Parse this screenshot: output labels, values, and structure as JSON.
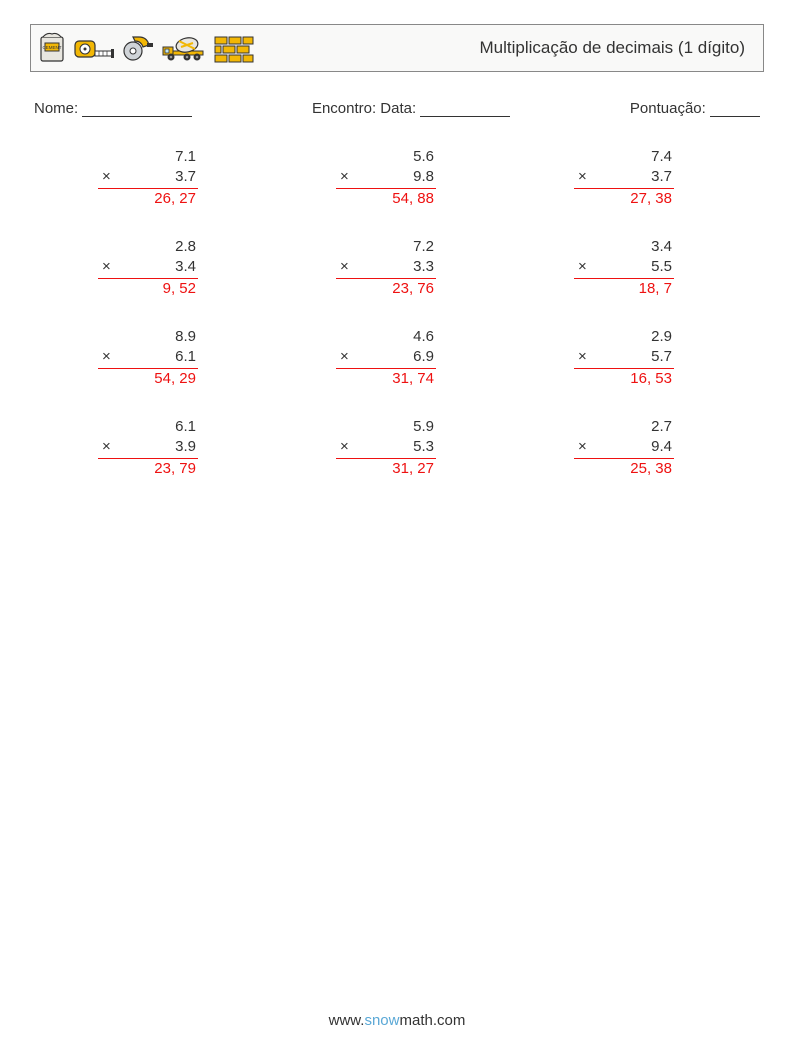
{
  "header": {
    "title": "Multiplicação de decimais (1 dígito)"
  },
  "info": {
    "name_label": "Nome:",
    "name_blank_width": 110,
    "date_label": "Encontro: Data:",
    "date_blank_width": 90,
    "score_label": "Pontuação:",
    "score_blank_width": 50
  },
  "problems": [
    {
      "a": "7.1",
      "b": "3.7",
      "ans": "26, 27"
    },
    {
      "a": "5.6",
      "b": "9.8",
      "ans": "54, 88"
    },
    {
      "a": "7.4",
      "b": "3.7",
      "ans": "27, 38"
    },
    {
      "a": "2.8",
      "b": "3.4",
      "ans": "9, 52"
    },
    {
      "a": "7.2",
      "b": "3.3",
      "ans": "23, 76"
    },
    {
      "a": "3.4",
      "b": "5.5",
      "ans": "18, 7"
    },
    {
      "a": "8.9",
      "b": "6.1",
      "ans": "54, 29"
    },
    {
      "a": "4.6",
      "b": "6.9",
      "ans": "31, 74"
    },
    {
      "a": "2.9",
      "b": "5.7",
      "ans": "16, 53"
    },
    {
      "a": "6.1",
      "b": "3.9",
      "ans": "23, 79"
    },
    {
      "a": "5.9",
      "b": "5.3",
      "ans": "31, 27"
    },
    {
      "a": "2.7",
      "b": "9.4",
      "ans": "25, 38"
    }
  ],
  "footer": {
    "prefix": "www.",
    "brand": "snow",
    "suffix": "math.com"
  },
  "style": {
    "answer_color": "#e11111",
    "text_color": "#333333",
    "border_color": "#888888",
    "bg_color": "#ffffff",
    "title_fontsize": 17,
    "body_fontsize": 15
  }
}
